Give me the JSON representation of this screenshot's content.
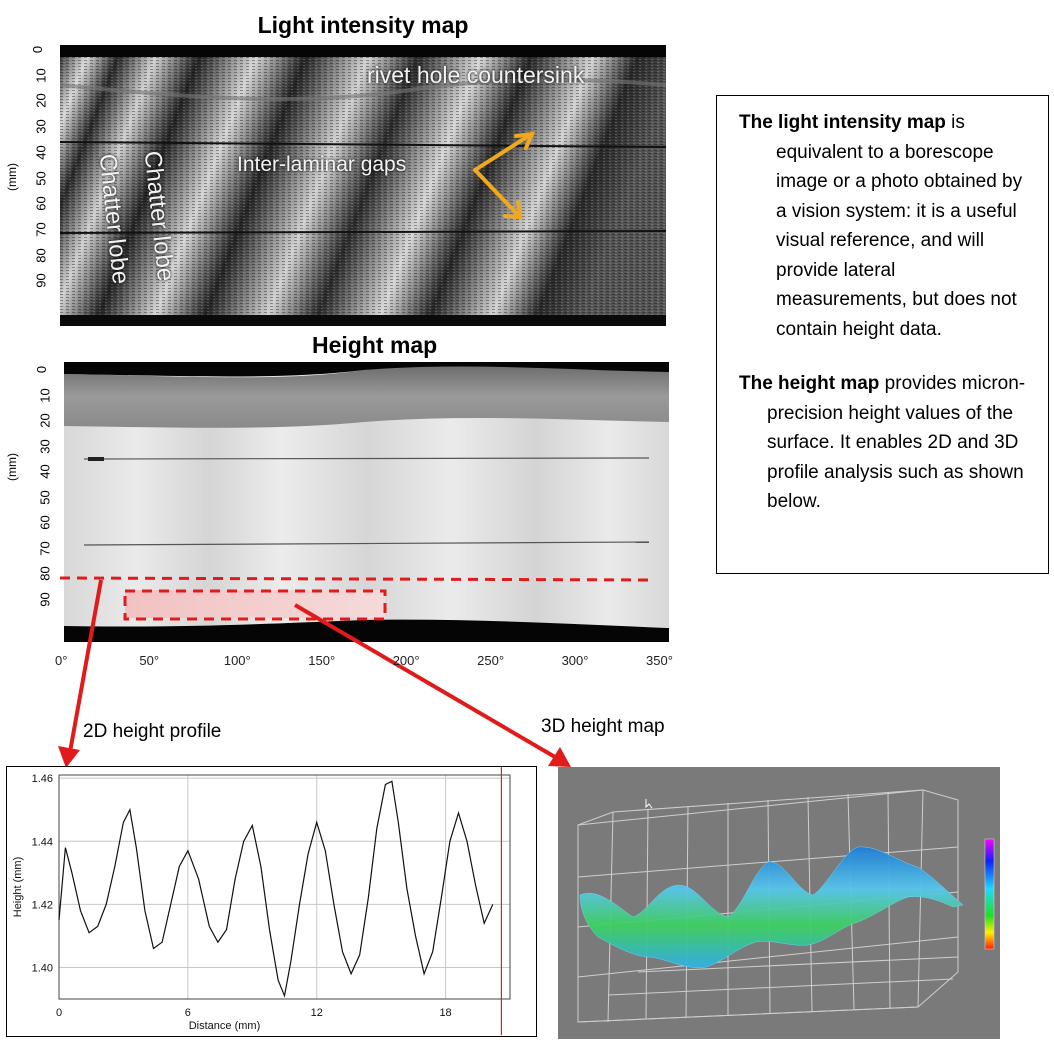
{
  "intensity_map": {
    "title": "Light intensity map",
    "y_unit": "(mm)",
    "y_ticks": [
      "0",
      "10",
      "20",
      "30",
      "40",
      "50",
      "60",
      "70",
      "80",
      "90"
    ],
    "labels": {
      "countersink": "rivet hole countersink",
      "gaps": "Inter-laminar gaps",
      "chatter1": "Chatter lobe",
      "chatter2": "Chatter lobe"
    },
    "arrow_color": "#f0a81c"
  },
  "height_map": {
    "title": "Height map",
    "y_unit": "(mm)",
    "y_ticks": [
      "0",
      "10",
      "20",
      "30",
      "40",
      "50",
      "60",
      "70",
      "80",
      "90"
    ],
    "x_ticks": [
      "0°",
      "50°",
      "100°",
      "150°",
      "200°",
      "250°",
      "300°",
      "350°"
    ],
    "highlight_color": "#e11b1b"
  },
  "description": {
    "p1_bold": "The light intensity map",
    "p1_text": " is equivalent to a borescope image or a photo obtained by a vision system: it is a useful visual reference, and will provide lateral measurements, but does not contain height data.",
    "p2_bold": "The height map",
    "p2_text": " provides micron-precision height values of the surface.  It enables 2D and 3D profile analysis such as shown below."
  },
  "profile_label": "2D height profile",
  "map3d_label": "3D height map",
  "chart_data": {
    "type": "line",
    "xlabel": "Distance (mm)",
    "ylabel": "Height  (mm)",
    "xlim": [
      0,
      21
    ],
    "ylim": [
      1.39,
      1.461
    ],
    "x_ticks": [
      0,
      6,
      12,
      18
    ],
    "x_tick_labels": [
      "0",
      "6",
      "12",
      "18"
    ],
    "y_ticks": [
      1.4,
      1.42,
      1.44,
      1.46
    ],
    "y_tick_labels": [
      "1.40",
      "1.42",
      "1.44",
      "1.46"
    ],
    "grid": true,
    "series": [
      {
        "x": [
          0,
          0.3,
          0.6,
          1.0,
          1.4,
          1.8,
          2.2,
          2.6,
          3.0,
          3.3,
          3.6,
          4.0,
          4.4,
          4.8,
          5.2,
          5.6,
          6.0,
          6.5,
          7.0,
          7.4,
          7.8,
          8.2,
          8.6,
          9.0,
          9.4,
          9.8,
          10.2,
          10.5,
          10.8,
          11.2,
          11.6,
          12.0,
          12.4,
          12.8,
          13.2,
          13.6,
          14.0,
          14.4,
          14.8,
          15.2,
          15.5,
          15.8,
          16.2,
          16.6,
          17.0,
          17.4,
          17.8,
          18.2,
          18.6,
          19.0,
          19.4,
          19.8,
          20.2
        ],
        "y": [
          1.415,
          1.438,
          1.43,
          1.418,
          1.411,
          1.413,
          1.42,
          1.432,
          1.446,
          1.45,
          1.438,
          1.418,
          1.406,
          1.408,
          1.42,
          1.432,
          1.437,
          1.428,
          1.413,
          1.408,
          1.412,
          1.428,
          1.44,
          1.445,
          1.432,
          1.412,
          1.396,
          1.391,
          1.402,
          1.42,
          1.436,
          1.446,
          1.437,
          1.42,
          1.405,
          1.398,
          1.404,
          1.422,
          1.444,
          1.458,
          1.459,
          1.446,
          1.425,
          1.41,
          1.398,
          1.405,
          1.422,
          1.44,
          1.449,
          1.44,
          1.426,
          1.414,
          1.42
        ]
      }
    ]
  }
}
